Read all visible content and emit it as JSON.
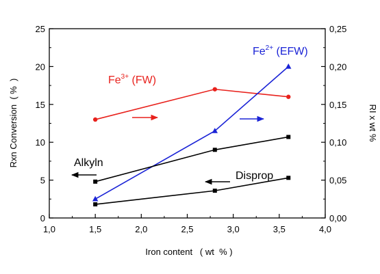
{
  "chart_data": {
    "type": "line",
    "title": "",
    "xlabel": "Iron content   ( wt  % )",
    "ylabel": "Rxn Conversion  ( %  )",
    "y2label": "RI x wt %",
    "xlim": [
      1.0,
      4.0
    ],
    "ylim": [
      0,
      25
    ],
    "y2lim": [
      0.0,
      0.25
    ],
    "x_ticks": [
      "1,0",
      "1,5",
      "2,0",
      "2,5",
      "3,0",
      "3,5",
      "4,0"
    ],
    "y_ticks": [
      "0",
      "5",
      "10",
      "15",
      "20",
      "25"
    ],
    "y2_ticks": [
      "0,00",
      "0,05",
      "0,10",
      "0,15",
      "0,20",
      "0,25"
    ],
    "grid": false,
    "legend": "none",
    "series": [
      {
        "name": "Fe3+ (FW)",
        "axis": "right",
        "color": "#e8211c",
        "marker": "circle",
        "x": [
          1.5,
          2.8,
          3.6
        ],
        "y": [
          0.13,
          0.17,
          0.16
        ]
      },
      {
        "name": "Fe2+ (EFW)",
        "axis": "right",
        "color": "#1a23d6",
        "marker": "triangle",
        "x": [
          1.5,
          2.8,
          3.6
        ],
        "y": [
          0.025,
          0.115,
          0.2
        ]
      },
      {
        "name": "Alkyln",
        "axis": "left",
        "color": "#000000",
        "marker": "square",
        "x": [
          1.5,
          2.8,
          3.6
        ],
        "y": [
          4.8,
          9.0,
          10.7
        ]
      },
      {
        "name": "Disprop",
        "axis": "left",
        "color": "#000000",
        "marker": "square",
        "x": [
          1.5,
          2.8,
          3.6
        ],
        "y": [
          1.8,
          3.6,
          5.3
        ]
      }
    ],
    "annotations": [
      {
        "id": "fe3",
        "base": "Fe",
        "sup": "3+",
        "rest": " (FW)",
        "color": "#e8211c"
      },
      {
        "id": "fe2",
        "base": "Fe",
        "sup": "2+",
        "rest": " (EFW)",
        "color": "#1a23d6"
      },
      {
        "id": "alkyln",
        "text": "Alkyln",
        "color": "#000000"
      },
      {
        "id": "disprop",
        "text": "Disprop",
        "color": "#000000"
      }
    ]
  }
}
